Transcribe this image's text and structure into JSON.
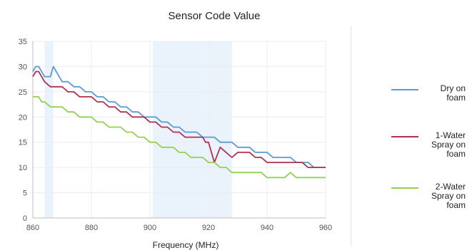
{
  "chart_data": {
    "type": "line",
    "title": "Sensor Code Value",
    "xlabel": "Frequency (MHz)",
    "ylabel": "",
    "xlim": [
      860,
      960
    ],
    "ylim": [
      0,
      35
    ],
    "xticks": [
      860,
      880,
      900,
      920,
      940,
      960
    ],
    "yticks": [
      0,
      5,
      10,
      15,
      20,
      25,
      30,
      35
    ],
    "grid": true,
    "legend_position": "right",
    "highlight_bands": [
      [
        864,
        867
      ],
      [
        901,
        928
      ]
    ],
    "series": [
      {
        "name": "Dry on foam",
        "color": "#5b9bd5",
        "x": [
          860,
          861,
          862,
          863,
          864,
          866,
          867,
          868,
          869,
          870,
          872,
          874,
          876,
          878,
          880,
          882,
          884,
          886,
          888,
          890,
          892,
          894,
          896,
          898,
          900,
          902,
          904,
          906,
          908,
          910,
          912,
          914,
          916,
          918,
          920,
          922,
          924,
          926,
          928,
          930,
          932,
          934,
          936,
          938,
          940,
          942,
          944,
          946,
          948,
          950,
          952,
          954,
          956,
          958,
          960
        ],
        "y": [
          29,
          30,
          30,
          29,
          28,
          28,
          30,
          29,
          28,
          27,
          27,
          26,
          26,
          25,
          25,
          24,
          24,
          23,
          23,
          22,
          22,
          21,
          21,
          20,
          20,
          20,
          19,
          19,
          18,
          18,
          17,
          17,
          17,
          16,
          16,
          16,
          15,
          15,
          15,
          14,
          14,
          14,
          13,
          13,
          13,
          12,
          12,
          12,
          12,
          11,
          11,
          11,
          10,
          10,
          10
        ]
      },
      {
        "name": "1-Water Spray on foam",
        "color": "#b0314f",
        "x": [
          860,
          861,
          862,
          863,
          864,
          866,
          868,
          870,
          872,
          874,
          876,
          878,
          880,
          882,
          884,
          886,
          888,
          890,
          892,
          894,
          896,
          898,
          900,
          902,
          904,
          906,
          908,
          910,
          912,
          914,
          916,
          918,
          919,
          920,
          921,
          922,
          924,
          926,
          928,
          930,
          932,
          934,
          936,
          938,
          940,
          942,
          944,
          946,
          948,
          950,
          952,
          954,
          956,
          958,
          960
        ],
        "y": [
          28,
          29,
          29,
          28,
          27,
          26,
          26,
          26,
          25,
          25,
          24,
          24,
          24,
          23,
          23,
          22,
          22,
          21,
          21,
          20,
          20,
          20,
          19,
          19,
          18,
          18,
          17,
          17,
          16,
          16,
          16,
          16,
          15,
          15,
          13,
          11,
          14,
          13,
          12,
          13,
          13,
          13,
          12,
          12,
          11,
          11,
          11,
          11,
          11,
          11,
          11,
          10,
          10,
          10,
          10
        ]
      },
      {
        "name": "2-Water Spray on foam",
        "color": "#92d050",
        "x": [
          860,
          861,
          862,
          863,
          864,
          866,
          868,
          870,
          872,
          874,
          876,
          878,
          880,
          882,
          884,
          886,
          888,
          890,
          892,
          894,
          896,
          898,
          900,
          902,
          904,
          906,
          908,
          910,
          912,
          914,
          916,
          918,
          920,
          922,
          924,
          926,
          928,
          930,
          932,
          934,
          936,
          938,
          940,
          942,
          944,
          946,
          948,
          950,
          952,
          954,
          956,
          958,
          960
        ],
        "y": [
          24,
          24,
          24,
          23,
          23,
          22,
          22,
          22,
          21,
          21,
          20,
          20,
          20,
          19,
          19,
          18,
          18,
          18,
          17,
          17,
          16,
          16,
          15,
          15,
          14,
          14,
          14,
          13,
          13,
          12,
          12,
          12,
          11,
          11,
          10,
          10,
          9,
          9,
          9,
          9,
          9,
          9,
          8,
          8,
          8,
          8,
          9,
          8,
          8,
          8,
          8,
          8,
          8
        ]
      }
    ]
  }
}
